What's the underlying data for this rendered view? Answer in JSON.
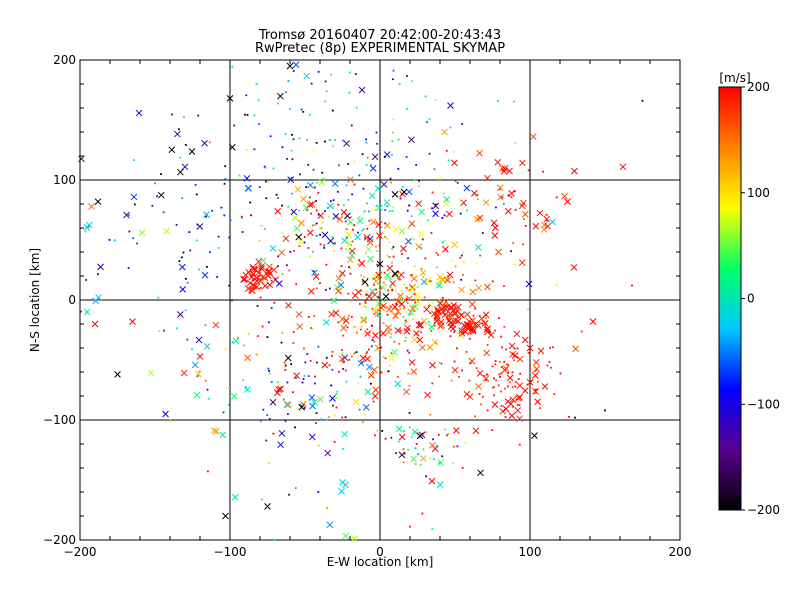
{
  "chart_data": {
    "type": "scatter",
    "title": "Tromsø 20160407 20:42:00-20:43:43",
    "subtitle": "RwPretec (8p) EXPERIMENTAL SKYMAP",
    "xlabel": "E-W location [km]",
    "ylabel": "N-S location [km]",
    "xlim": [
      -200,
      200
    ],
    "ylim": [
      -200,
      200
    ],
    "xticks": [
      -200,
      -100,
      0,
      100,
      200
    ],
    "yticks": [
      -200,
      -100,
      0,
      100,
      200
    ],
    "grid_lines": [
      -100,
      0,
      100
    ],
    "grid": true,
    "colorbar": {
      "label": "[m/s]",
      "min": -200,
      "max": 200,
      "ticks": [
        200,
        100,
        0,
        -100,
        -200
      ],
      "colormap": [
        "#000000",
        "#5a008f",
        "#0000ff",
        "#00c8ff",
        "#00ff66",
        "#ffff00",
        "#ff8000",
        "#ff0000"
      ]
    },
    "clusters": [
      {
        "x": -20,
        "y": 130,
        "spread": 45,
        "n": 130,
        "v": -60,
        "vs": 80,
        "cross": 0.15
      },
      {
        "x": -95,
        "y": 80,
        "spread": 45,
        "n": 90,
        "v": -120,
        "vs": 90,
        "cross": 0.2
      },
      {
        "x": -80,
        "y": 20,
        "spread": 6,
        "n": 45,
        "v": 195,
        "vs": 10,
        "cross": 0.7
      },
      {
        "x": -30,
        "y": 60,
        "spread": 22,
        "n": 110,
        "v": 120,
        "vs": 120,
        "cross": 0.45
      },
      {
        "x": 15,
        "y": 5,
        "spread": 22,
        "n": 170,
        "v": 120,
        "vs": 80,
        "cross": 0.45
      },
      {
        "x": 5,
        "y": -25,
        "spread": 35,
        "n": 170,
        "v": 185,
        "vs": 25,
        "cross": 0.3
      },
      {
        "x": 45,
        "y": -12,
        "spread": 6,
        "n": 40,
        "v": 195,
        "vs": 10,
        "cross": 0.8
      },
      {
        "x": 62,
        "y": -20,
        "spread": 6,
        "n": 35,
        "v": 195,
        "vs": 10,
        "cross": 0.7
      },
      {
        "x": 85,
        "y": -70,
        "spread": 18,
        "n": 110,
        "v": 190,
        "vs": 15,
        "cross": 0.4
      },
      {
        "x": 85,
        "y": 80,
        "spread": 22,
        "n": 55,
        "v": 180,
        "vs": 25,
        "cross": 0.6
      },
      {
        "x": -40,
        "y": -75,
        "spread": 28,
        "n": 90,
        "v": -60,
        "vs": 120,
        "cross": 0.3
      },
      {
        "x": -110,
        "y": -60,
        "spread": 25,
        "n": 35,
        "v": 50,
        "vs": 130,
        "cross": 0.4
      },
      {
        "x": 30,
        "y": -120,
        "spread": 12,
        "n": 45,
        "v": 40,
        "vs": 120,
        "cross": 0.25
      },
      {
        "x": -150,
        "y": 40,
        "spread": 35,
        "n": 45,
        "v": -100,
        "vs": 110,
        "cross": 0.3
      },
      {
        "x": 20,
        "y": 60,
        "spread": 40,
        "n": 90,
        "v": 40,
        "vs": 120,
        "cross": 0.2
      },
      {
        "x": -40,
        "y": -140,
        "spread": 40,
        "n": 30,
        "v": 0,
        "vs": 150,
        "cross": 0.3
      }
    ],
    "points": [
      {
        "x": 162,
        "y": 111,
        "v": 200,
        "m": "x"
      },
      {
        "x": -188,
        "y": 82,
        "v": -190,
        "m": "x"
      },
      {
        "x": -175,
        "y": -62,
        "v": -200,
        "m": "x"
      },
      {
        "x": -103,
        "y": -180,
        "v": -200,
        "m": "x"
      },
      {
        "x": -75,
        "y": -172,
        "v": -200,
        "m": "x"
      },
      {
        "x": -143,
        "y": -95,
        "v": -110,
        "m": "x"
      },
      {
        "x": -25,
        "y": -152,
        "v": -20,
        "m": "x"
      },
      {
        "x": -23,
        "y": -154,
        "v": -20,
        "m": "x"
      },
      {
        "x": 67,
        "y": -144,
        "v": -200,
        "m": "x"
      },
      {
        "x": 103,
        "y": -113,
        "v": -200,
        "m": "x"
      },
      {
        "x": 175,
        "y": 166,
        "v": -200,
        "m": "."
      },
      {
        "x": 150,
        "y": -92,
        "v": -200,
        "m": "."
      },
      {
        "x": 168,
        "y": 12,
        "v": 200,
        "m": "."
      },
      {
        "x": -60,
        "y": 195,
        "v": -200,
        "m": "x"
      },
      {
        "x": -100,
        "y": 168,
        "v": -200,
        "m": "x"
      },
      {
        "x": 47,
        "y": 162,
        "v": -110,
        "m": "x"
      },
      {
        "x": -12,
        "y": 175,
        "v": -130,
        "m": "x"
      },
      {
        "x": 10,
        "y": 88,
        "v": -200,
        "m": "x"
      },
      {
        "x": 16,
        "y": 90,
        "v": -200,
        "m": "x"
      },
      {
        "x": 43,
        "y": 140,
        "v": 130,
        "m": "x"
      },
      {
        "x": 115,
        "y": 65,
        "v": -20,
        "m": "x"
      },
      {
        "x": 125,
        "y": 82,
        "v": 200,
        "m": "x"
      },
      {
        "x": -190,
        "y": -20,
        "v": 200,
        "m": "x"
      },
      {
        "x": -165,
        "y": -18,
        "v": 200,
        "m": "x"
      },
      {
        "x": 142,
        "y": -18,
        "v": 200,
        "m": "x"
      },
      {
        "x": 100,
        "y": -40,
        "v": 200,
        "m": "x"
      },
      {
        "x": 130,
        "y": -98,
        "v": -200,
        "m": "."
      },
      {
        "x": 0,
        "y": 30,
        "v": -200,
        "m": "x"
      },
      {
        "x": 10,
        "y": 22,
        "v": -200,
        "m": "x"
      },
      {
        "x": 4,
        "y": 3,
        "v": -200,
        "m": "x"
      },
      {
        "x": -10,
        "y": 15,
        "v": -200,
        "m": "x"
      }
    ]
  }
}
